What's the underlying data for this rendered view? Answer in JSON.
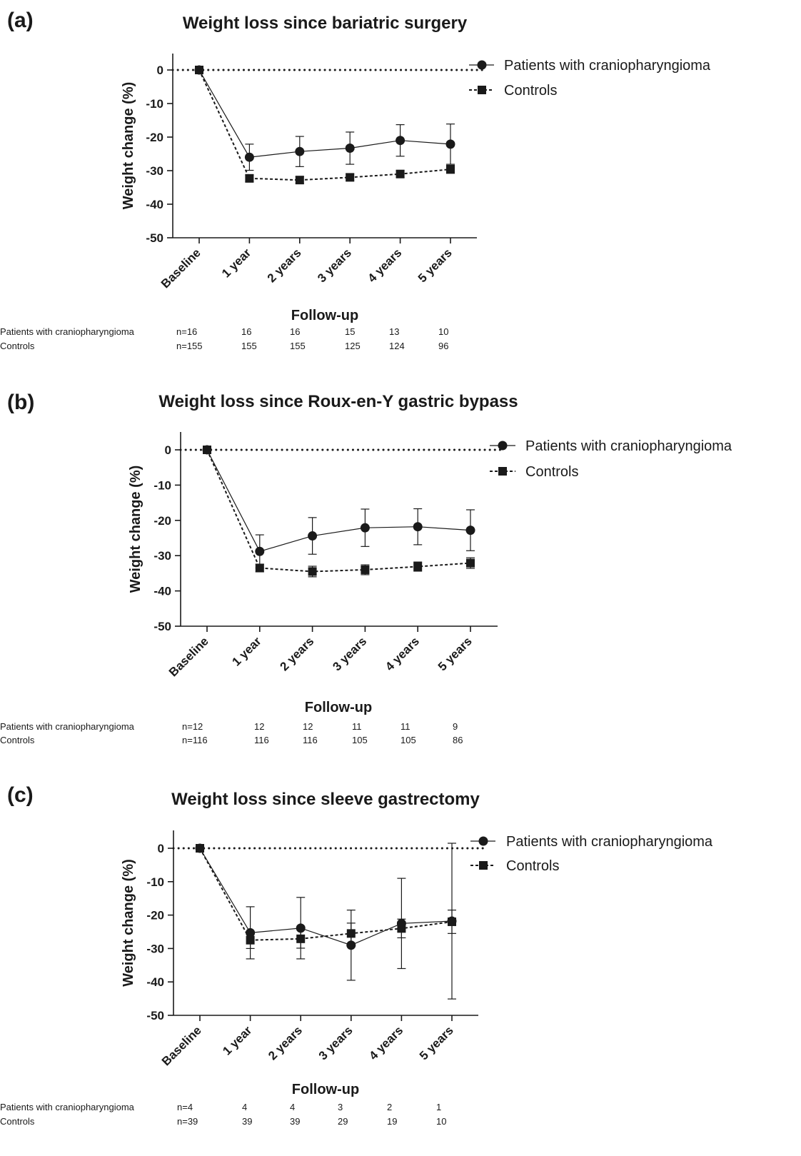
{
  "chart_data": [
    {
      "type": "line",
      "panel_label": "(a)",
      "title": "Weight loss since bariatric surgery",
      "xlabel": "Follow-up",
      "ylabel": "Weight change (%)",
      "categories": [
        "Baseline",
        "1 year",
        "2 years",
        "3 years",
        "4 years",
        "5 years"
      ],
      "ylim": [
        -50,
        5
      ],
      "yticks": [
        "0",
        "-10",
        "-20",
        "-30",
        "-40",
        "-50"
      ],
      "legend_position": "top-right",
      "series": [
        {
          "name": "Patients with craniopharyngioma",
          "values": [
            0,
            -26,
            -24.3,
            -23.3,
            -21,
            -22.1
          ],
          "error": [
            0,
            3.9,
            4.5,
            4.8,
            4.7,
            6
          ],
          "marker": "circle",
          "line": "solid"
        },
        {
          "name": "Controls",
          "values": [
            0,
            -32.3,
            -32.8,
            -32,
            -31,
            -29.6
          ],
          "error": [
            0,
            1,
            1,
            1,
            1,
            1.2
          ],
          "marker": "square",
          "line": "dashed"
        }
      ],
      "reference_line": 0,
      "n_table": {
        "rows": [
          {
            "label": "Patients with craniopharyngioma",
            "values": [
              "n=16",
              "16",
              "16",
              "15",
              "13",
              "10"
            ]
          },
          {
            "label": "Controls",
            "values": [
              "n=155",
              "155",
              "155",
              "125",
              "124",
              "96"
            ]
          }
        ]
      }
    },
    {
      "type": "line",
      "panel_label": "(b)",
      "title": "Weight loss since Roux-en-Y gastric bypass",
      "xlabel": "Follow-up",
      "ylabel": "Weight change (%)",
      "categories": [
        "Baseline",
        "1 year",
        "2 years",
        "3 years",
        "4 years",
        "5 years"
      ],
      "ylim": [
        -50,
        5
      ],
      "yticks": [
        "0",
        "-10",
        "-20",
        "-30",
        "-40",
        "-50"
      ],
      "legend_position": "top-right",
      "series": [
        {
          "name": "Patients with craniopharyngioma",
          "values": [
            0,
            -28.8,
            -24.4,
            -22.1,
            -21.8,
            -22.8
          ],
          "error": [
            0,
            4.7,
            5.2,
            5.3,
            5.1,
            5.8
          ],
          "marker": "circle",
          "line": "solid"
        },
        {
          "name": "Controls",
          "values": [
            0,
            -33.5,
            -34.5,
            -34,
            -33.1,
            -32.1
          ],
          "error": [
            0,
            1.1,
            1.5,
            1.4,
            1.3,
            1.5
          ],
          "marker": "square",
          "line": "dashed"
        }
      ],
      "reference_line": 0,
      "n_table": {
        "rows": [
          {
            "label": "Patients with craniopharyngioma",
            "values": [
              "n=12",
              "12",
              "12",
              "11",
              "11",
              "9"
            ]
          },
          {
            "label": "Controls",
            "values": [
              "n=116",
              "116",
              "116",
              "105",
              "105",
              "86"
            ]
          }
        ]
      }
    },
    {
      "type": "line",
      "panel_label": "(c)",
      "title": "Weight loss since sleeve gastrectomy",
      "xlabel": "Follow-up",
      "ylabel": "Weight change (%)",
      "categories": [
        "Baseline",
        "1 year",
        "2 years",
        "3 years",
        "4 years",
        "5 years"
      ],
      "ylim": [
        -50,
        5
      ],
      "yticks": [
        "0",
        "-10",
        "-20",
        "-30",
        "-40",
        "-50"
      ],
      "legend_position": "top-right",
      "series": [
        {
          "name": "Patients with craniopharyngioma",
          "values": [
            0,
            -25.3,
            -23.9,
            -29,
            -22.5,
            -21.8
          ],
          "error": [
            0,
            7.8,
            9.2,
            10.5,
            13.5,
            23.3
          ],
          "marker": "circle",
          "line": "solid"
        },
        {
          "name": "Controls",
          "values": [
            0,
            -27.5,
            -27.1,
            -25.5,
            -24,
            -22
          ],
          "error": [
            0,
            2.5,
            2.8,
            3.1,
            2.8,
            3.5
          ],
          "marker": "square",
          "line": "dashed"
        }
      ],
      "reference_line": 0,
      "n_table": {
        "rows": [
          {
            "label": "Patients with craniopharyngioma",
            "values": [
              "n=4",
              "4",
              "4",
              "3",
              "2",
              "1"
            ]
          },
          {
            "label": "Controls",
            "values": [
              "n=39",
              "39",
              "39",
              "29",
              "19",
              "10"
            ]
          }
        ]
      }
    }
  ]
}
